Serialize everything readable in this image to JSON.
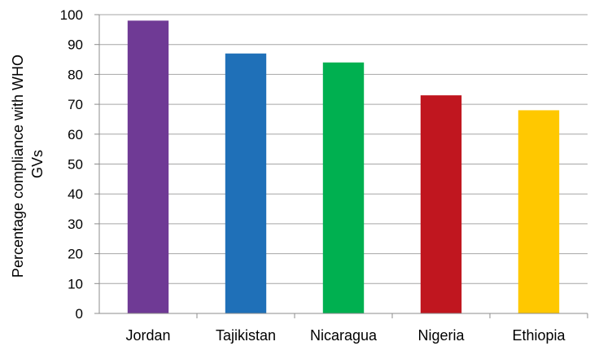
{
  "chart_data": {
    "type": "bar",
    "title": "",
    "xlabel": "",
    "ylabel": "Percentage compliance with WHO GVs",
    "ylabel_lines": [
      "Percentage compliance with WHO",
      "GVs"
    ],
    "categories": [
      "Jordan",
      "Tajikistan",
      "Nicaragua",
      "Nigeria",
      "Ethiopia"
    ],
    "values": [
      98,
      87,
      84,
      73,
      68
    ],
    "colors": [
      "#6f3a95",
      "#1f70b8",
      "#00b050",
      "#c0161f",
      "#ffc800"
    ],
    "ylim": [
      0,
      100
    ],
    "yticks": [
      0,
      10,
      20,
      30,
      40,
      50,
      60,
      70,
      80,
      90,
      100
    ],
    "grid": true,
    "legend": "none"
  }
}
